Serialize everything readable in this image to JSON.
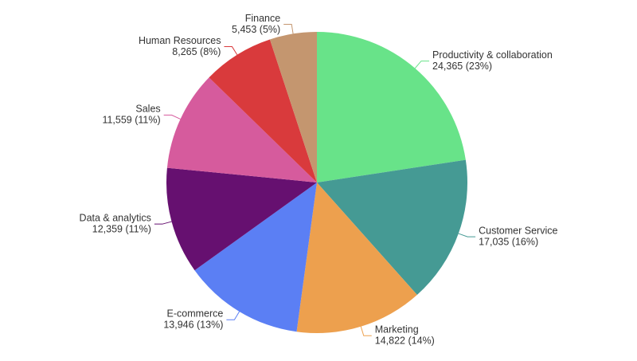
{
  "chart_data": {
    "type": "pie",
    "categories": [
      "Productivity & collaboration",
      "Customer Service",
      "Marketing",
      "E-commerce",
      "Data & analytics",
      "Sales",
      "Human Resources",
      "Finance"
    ],
    "values": [
      24365,
      17035,
      14822,
      13946,
      12359,
      11559,
      8265,
      5453
    ],
    "value_labels": [
      "24,365 (23%)",
      "17,035 (16%)",
      "14,822 (14%)",
      "13,946 (13%)",
      "12,359 (11%)",
      "11,559 (11%)",
      "8,265 (8%)",
      "5,453 (5%)"
    ],
    "colors": [
      "#68e389",
      "#459a94",
      "#eda04e",
      "#5b7ff4",
      "#661070",
      "#d65b9d",
      "#d93a3c",
      "#c4966f"
    ]
  }
}
